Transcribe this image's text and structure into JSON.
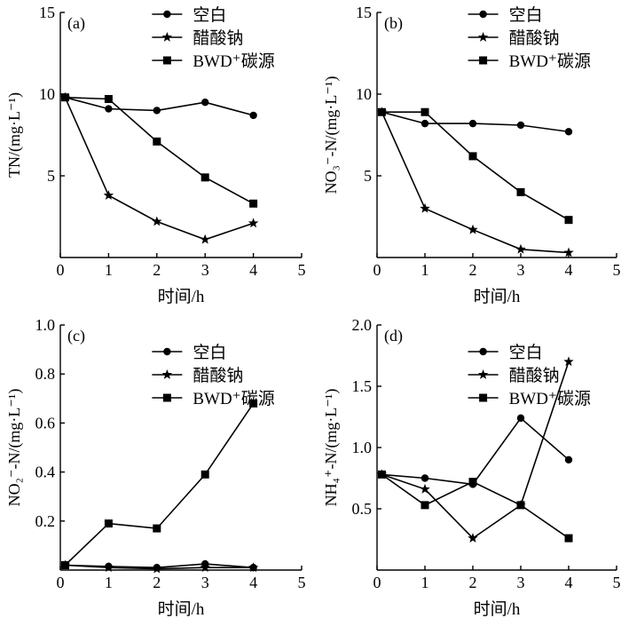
{
  "x_axis_label": "时间/h",
  "legend_labels": [
    "空白",
    "醋酸钠",
    "BWD⁺碳源"
  ],
  "chart_data": [
    {
      "type": "line",
      "panel": "(a)",
      "ylabel": "TN/(mg·L⁻¹)",
      "xlabel": "时间/h",
      "xlim": [
        0,
        5
      ],
      "ylim": [
        0,
        15
      ],
      "xticks": [
        0,
        1,
        2,
        3,
        4,
        5
      ],
      "yticks": [
        5,
        10,
        15
      ],
      "legend": "top-right",
      "x": [
        0.1,
        1,
        2,
        3,
        4
      ],
      "series": [
        {
          "name": "空白",
          "marker": "circle",
          "values": [
            9.8,
            9.1,
            9.0,
            9.5,
            8.7
          ]
        },
        {
          "name": "醋酸钠",
          "marker": "star",
          "values": [
            9.8,
            3.8,
            2.2,
            1.1,
            2.1
          ]
        },
        {
          "name": "BWD⁺碳源",
          "marker": "square",
          "values": [
            9.8,
            9.7,
            7.1,
            4.9,
            3.3
          ]
        }
      ]
    },
    {
      "type": "line",
      "panel": "(b)",
      "ylabel": "NO₃⁻-N/(mg·L⁻¹)",
      "xlabel": "时间/h",
      "xlim": [
        0,
        5
      ],
      "ylim": [
        0,
        15
      ],
      "xticks": [
        0,
        1,
        2,
        3,
        4,
        5
      ],
      "yticks": [
        5,
        10,
        15
      ],
      "legend": "top-right",
      "x": [
        0.1,
        1,
        2,
        3,
        4
      ],
      "series": [
        {
          "name": "空白",
          "marker": "circle",
          "values": [
            8.9,
            8.2,
            8.2,
            8.1,
            7.7
          ]
        },
        {
          "name": "醋酸钠",
          "marker": "star",
          "values": [
            8.9,
            3.0,
            1.7,
            0.5,
            0.3
          ]
        },
        {
          "name": "BWD⁺碳源",
          "marker": "square",
          "values": [
            8.9,
            8.9,
            6.2,
            4.0,
            2.3
          ]
        }
      ]
    },
    {
      "type": "line",
      "panel": "(c)",
      "ylabel": "NO₂⁻-N/(mg·L⁻¹)",
      "xlabel": "时间/h",
      "xlim": [
        0,
        5
      ],
      "ylim": [
        0,
        1.0
      ],
      "xticks": [
        0,
        1,
        2,
        3,
        4,
        5
      ],
      "yticks": [
        0.2,
        0.4,
        0.6,
        0.8,
        1.0
      ],
      "legend": "top-right",
      "x": [
        0.1,
        1,
        2,
        3,
        4
      ],
      "series": [
        {
          "name": "空白",
          "marker": "circle",
          "values": [
            0.02,
            0.015,
            0.01,
            0.025,
            0.01
          ]
        },
        {
          "name": "醋酸钠",
          "marker": "star",
          "values": [
            0.02,
            0.01,
            0.005,
            0.01,
            0.01
          ]
        },
        {
          "name": "BWD⁺碳源",
          "marker": "square",
          "values": [
            0.02,
            0.19,
            0.17,
            0.39,
            0.68
          ]
        }
      ]
    },
    {
      "type": "line",
      "panel": "(d)",
      "ylabel": "NH₄⁺-N/(mg·L⁻¹)",
      "xlabel": "时间/h",
      "xlim": [
        0,
        5
      ],
      "ylim": [
        0,
        2.0
      ],
      "xticks": [
        0,
        1,
        2,
        3,
        4,
        5
      ],
      "yticks": [
        0.5,
        1.0,
        1.5,
        2.0
      ],
      "legend": "top-right",
      "x": [
        0.1,
        1,
        2,
        3,
        4
      ],
      "series": [
        {
          "name": "空白",
          "marker": "circle",
          "values": [
            0.78,
            0.75,
            0.7,
            1.24,
            0.9
          ]
        },
        {
          "name": "醋酸钠",
          "marker": "star",
          "values": [
            0.78,
            0.66,
            0.26,
            0.53,
            1.7
          ]
        },
        {
          "name": "BWD⁺碳源",
          "marker": "square",
          "values": [
            0.78,
            0.53,
            0.72,
            0.53,
            0.26
          ]
        }
      ]
    }
  ]
}
